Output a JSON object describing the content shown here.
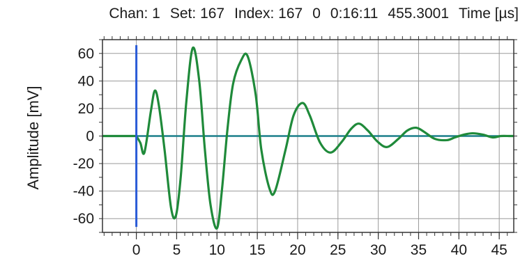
{
  "header": {
    "chan": "Chan: 1",
    "set": "Set: 167",
    "index": "Index: 167",
    "zero": "0",
    "clock": "0:16:11",
    "value": "455.3001",
    "time_label": "Time [µs]"
  },
  "chart_data": {
    "type": "line",
    "title": "",
    "xlabel": "Time [µs]",
    "ylabel": "Amplitude [mV]",
    "xlim": [
      -4.2,
      46.8
    ],
    "ylim": [
      -70,
      70
    ],
    "x_ticks": [
      0,
      5,
      10,
      15,
      20,
      25,
      30,
      35,
      40,
      45
    ],
    "y_ticks": [
      -60,
      -40,
      -20,
      0,
      20,
      40,
      60
    ],
    "grid": true,
    "baseline": 0,
    "marker_x": 0,
    "marker_range": [
      -66,
      66
    ],
    "colors": {
      "waveform": "#1f8a3a",
      "baseline": "#1a7f8a",
      "marker": "#2a5bd7",
      "grid": "#9a9a9a"
    },
    "series": [
      {
        "name": "",
        "x": [
          0,
          0.5,
          1.0,
          1.8,
          2.3,
          2.8,
          3.5,
          4.3,
          4.9,
          5.5,
          6.2,
          7.0,
          7.8,
          8.5,
          9.2,
          10.0,
          10.6,
          11.3,
          12.0,
          13.0,
          13.8,
          14.8,
          15.5,
          16.5,
          17.2,
          18.5,
          19.5,
          20.6,
          21.5,
          22.8,
          24.1,
          25.5,
          26.6,
          27.6,
          28.7,
          29.9,
          31.1,
          32.5,
          33.6,
          34.7,
          35.7,
          37.0,
          38.5,
          39.5,
          40.6,
          41.7,
          43.0,
          44.2,
          45.2,
          46.2
        ],
        "values": [
          0,
          -5,
          -12,
          18,
          33,
          22,
          -10,
          -52,
          -58,
          -30,
          25,
          64,
          40,
          -10,
          -50,
          -67,
          -40,
          5,
          38,
          55,
          58,
          30,
          -10,
          -38,
          -40,
          -10,
          15,
          24,
          15,
          -5,
          -12,
          -4,
          5,
          9,
          4,
          -4,
          -8,
          -2,
          4,
          6,
          3,
          -2,
          -3,
          -1,
          1,
          2,
          1,
          -1,
          0,
          0
        ]
      }
    ]
  }
}
